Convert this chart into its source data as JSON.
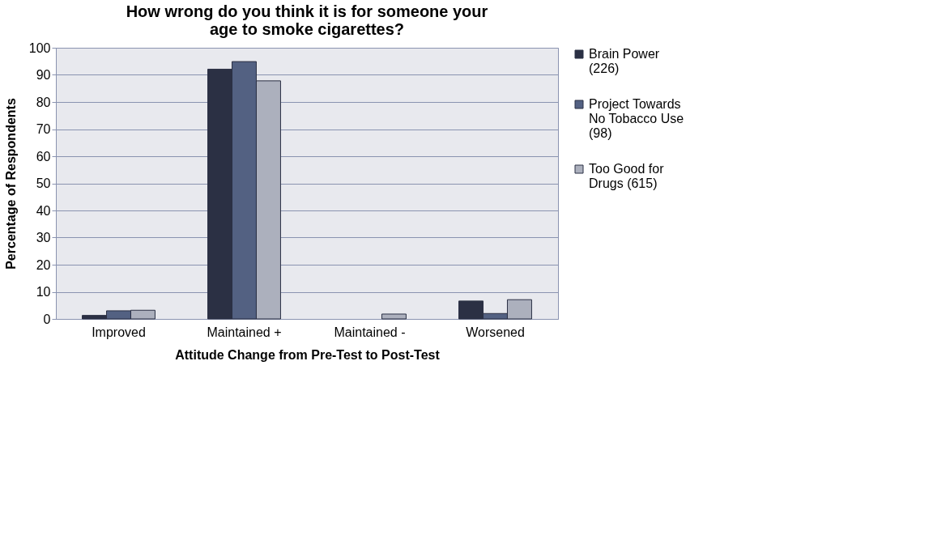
{
  "chart_data": {
    "type": "bar",
    "title": "How wrong do you think it is for someone your age to smoke cigarettes?",
    "xlabel": "Attitude Change from Pre-Test to Post-Test",
    "ylabel": "Percentage of Respondents",
    "categories": [
      "Improved",
      "Maintained +",
      "Maintained -",
      "Worsened"
    ],
    "series": [
      {
        "name": "Brain Power (226)",
        "color": "#2b3044",
        "values": [
          1.3,
          92.1,
          null,
          6.6
        ]
      },
      {
        "name": "Project Towards No Tobacco Use (98)",
        "color": "#536182",
        "values": [
          3.0,
          94.9,
          null,
          2.0
        ]
      },
      {
        "name": "Too Good for Drugs (615)",
        "color": "#acb0bd",
        "values": [
          3.2,
          87.8,
          1.8,
          7.1
        ]
      }
    ],
    "ylim": [
      0,
      100
    ],
    "yticks": [
      0,
      10,
      20,
      30,
      40,
      50,
      60,
      70,
      80,
      90,
      100
    ],
    "grid": "y",
    "legend": "right"
  }
}
